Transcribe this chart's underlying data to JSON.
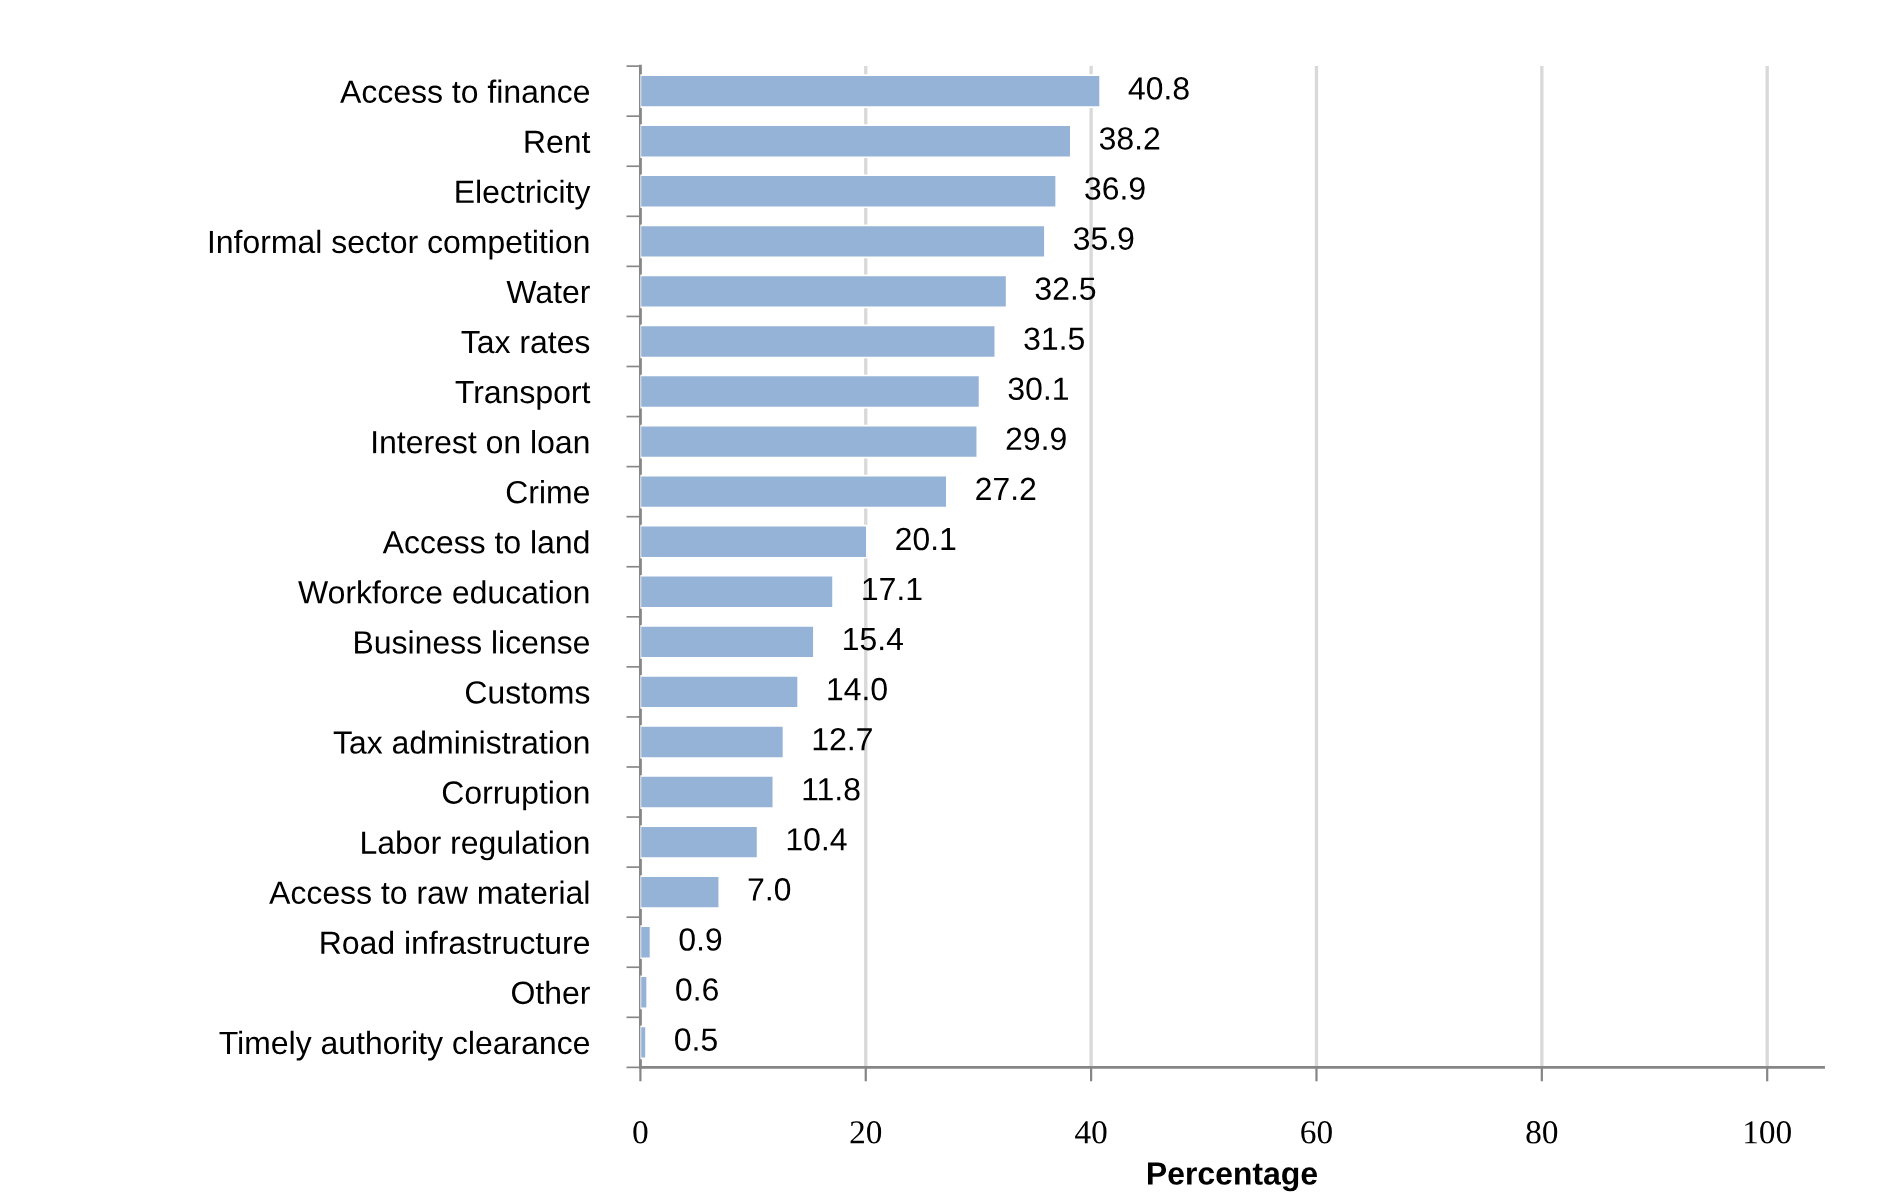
{
  "chart_data": {
    "type": "bar",
    "orientation": "horizontal",
    "xlabel": "Percentage",
    "categories": [
      "Access to finance",
      "Rent",
      "Electricity",
      "Informal sector competition",
      "Water",
      "Tax rates",
      "Transport",
      "Interest on loan",
      "Crime",
      "Access to land",
      "Workforce education",
      "Business license",
      "Customs",
      "Tax administration",
      "Corruption",
      "Labor regulation",
      "Access to raw material",
      "Road infrastructure",
      "Other",
      "Timely authority clearance"
    ],
    "values": [
      40.8,
      38.2,
      36.9,
      35.9,
      32.5,
      31.5,
      30.1,
      29.9,
      27.2,
      20.1,
      17.1,
      15.4,
      14.0,
      12.7,
      11.8,
      10.4,
      7.0,
      0.9,
      0.6,
      0.5
    ],
    "value_labels": [
      "40.8",
      "38.2",
      "36.9",
      "35.9",
      "32.5",
      "31.5",
      "30.1",
      "29.9",
      "27.2",
      "20.1",
      "17.1",
      "15.4",
      "14.0",
      "12.7",
      "11.8",
      "10.4",
      "7.0",
      "0.9",
      "0.6",
      "0.5"
    ],
    "color": "#95b3d7",
    "xlim": [
      0,
      105
    ],
    "xticks": [
      0,
      20,
      40,
      60,
      80,
      100
    ],
    "grid": "x",
    "legend": false
  }
}
